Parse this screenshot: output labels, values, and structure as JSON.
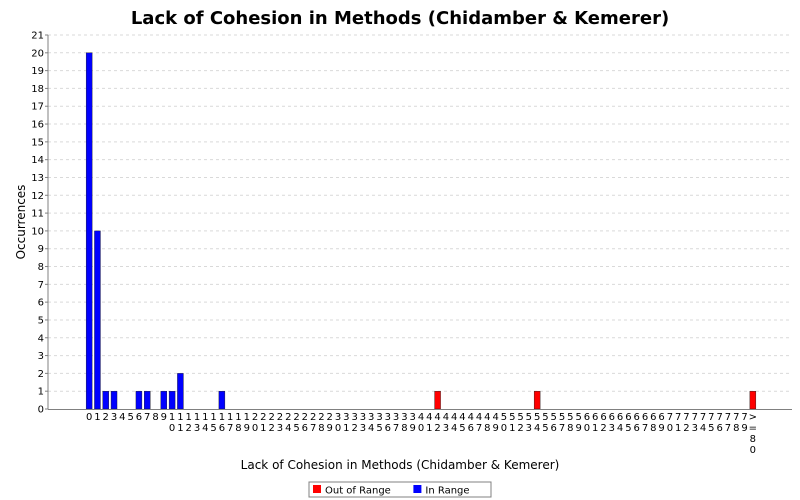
{
  "chart_data": {
    "type": "bar",
    "title": "Lack of Cohesion in Methods (Chidamber & Kemerer)",
    "xlabel": "Lack of Cohesion in Methods (Chidamber & Kemerer)",
    "ylabel": "Occurrences",
    "ylim": [
      0,
      21
    ],
    "yticks": [
      0,
      1,
      2,
      3,
      4,
      5,
      6,
      7,
      8,
      9,
      10,
      11,
      12,
      13,
      14,
      15,
      16,
      17,
      18,
      19,
      20,
      21
    ],
    "grid": true,
    "legend_position": "bottom-center",
    "categories": [
      "0",
      "1",
      "2",
      "3",
      "4",
      "5",
      "6",
      "7",
      "8",
      "9",
      "10",
      "11",
      "12",
      "13",
      "14",
      "15",
      "16",
      "17",
      "18",
      "19",
      "20",
      "21",
      "22",
      "23",
      "24",
      "25",
      "26",
      "27",
      "28",
      "29",
      "30",
      "31",
      "32",
      "33",
      "34",
      "35",
      "36",
      "37",
      "38",
      "39",
      "40",
      "41",
      "42",
      "43",
      "44",
      "45",
      "46",
      "47",
      "48",
      "49",
      "50",
      "51",
      "52",
      "53",
      "54",
      "55",
      "56",
      "57",
      "58",
      "59",
      "60",
      "61",
      "62",
      "63",
      "64",
      "65",
      "66",
      "67",
      "68",
      "69",
      "70",
      "71",
      "72",
      "73",
      "74",
      "75",
      "76",
      "77",
      "78",
      "79",
      ">=80"
    ],
    "series": [
      {
        "name": "Out of Range",
        "color": "#ff0000",
        "values": [
          0,
          0,
          0,
          0,
          0,
          0,
          0,
          0,
          0,
          0,
          0,
          0,
          0,
          0,
          0,
          0,
          0,
          0,
          0,
          0,
          0,
          0,
          0,
          0,
          0,
          0,
          0,
          0,
          0,
          0,
          0,
          0,
          0,
          0,
          0,
          0,
          0,
          0,
          0,
          0,
          0,
          0,
          1,
          0,
          0,
          0,
          0,
          0,
          0,
          0,
          0,
          0,
          0,
          0,
          1,
          0,
          0,
          0,
          0,
          0,
          0,
          0,
          0,
          0,
          0,
          0,
          0,
          0,
          0,
          0,
          0,
          0,
          0,
          0,
          0,
          0,
          0,
          0,
          0,
          0,
          1
        ]
      },
      {
        "name": "In Range",
        "color": "#0000ff",
        "values": [
          20,
          10,
          1,
          1,
          0,
          0,
          1,
          1,
          0,
          1,
          1,
          2,
          0,
          0,
          0,
          0,
          1,
          0,
          0,
          0,
          0,
          0,
          0,
          0,
          0,
          0,
          0,
          0,
          0,
          0,
          0,
          0,
          0,
          0,
          0,
          0,
          0,
          0,
          0,
          0,
          0,
          0,
          0,
          0,
          0,
          0,
          0,
          0,
          0,
          0,
          0,
          0,
          0,
          0,
          0,
          0,
          0,
          0,
          0,
          0,
          0,
          0,
          0,
          0,
          0,
          0,
          0,
          0,
          0,
          0,
          0,
          0,
          0,
          0,
          0,
          0,
          0,
          0,
          0,
          0,
          0
        ]
      }
    ]
  }
}
